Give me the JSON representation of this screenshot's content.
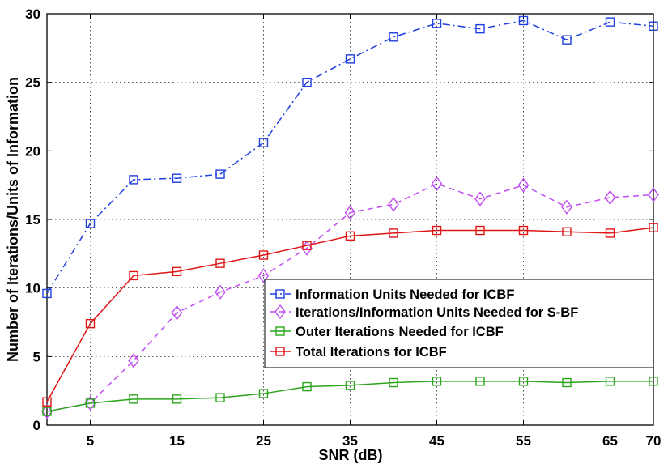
{
  "chart_data": {
    "type": "line",
    "title": "",
    "xlabel": "SNR (dB)",
    "ylabel": "Number of Iterations/Units of Information",
    "xlim": [
      0,
      70
    ],
    "ylim": [
      0,
      30
    ],
    "grid": true,
    "legend_position": "center-right",
    "xticks": [
      5,
      15,
      25,
      35,
      45,
      55,
      65,
      70
    ],
    "yticks": [
      0,
      5,
      10,
      15,
      20,
      25,
      30
    ],
    "x": [
      0,
      5,
      10,
      15,
      20,
      25,
      30,
      35,
      40,
      45,
      50,
      55,
      60,
      65,
      70
    ],
    "series": [
      {
        "name": "Information Units Needed for ICBF",
        "color": "#1f3fe0",
        "line_style": "dashdot",
        "marker": "square",
        "values": [
          9.6,
          14.7,
          17.9,
          18.0,
          18.3,
          20.6,
          25.0,
          26.7,
          28.3,
          29.3,
          28.9,
          29.5,
          28.1,
          29.4,
          29.1
        ]
      },
      {
        "name": "Iterations/Information Units Needed for S-BF",
        "color": "#c04df2",
        "line_style": "dashed",
        "marker": "diamond",
        "values": [
          1.0,
          1.6,
          4.7,
          8.2,
          9.7,
          10.9,
          12.9,
          15.5,
          16.1,
          17.6,
          16.5,
          17.5,
          15.9,
          16.6,
          16.8
        ]
      },
      {
        "name": "Outer Iterations Needed for ICBF",
        "color": "#2ca51c",
        "line_style": "solid",
        "marker": "square",
        "values": [
          1.0,
          1.6,
          1.9,
          1.9,
          2.0,
          2.3,
          2.8,
          2.9,
          3.1,
          3.2,
          3.2,
          3.2,
          3.1,
          3.2,
          3.2
        ]
      },
      {
        "name": "Total Iterations for ICBF",
        "color": "#e01515",
        "line_style": "solid",
        "marker": "square",
        "values": [
          1.7,
          7.4,
          10.9,
          11.2,
          11.8,
          12.4,
          13.1,
          13.8,
          14.0,
          14.2,
          14.2,
          14.2,
          14.1,
          14.0,
          14.4
        ]
      }
    ]
  }
}
